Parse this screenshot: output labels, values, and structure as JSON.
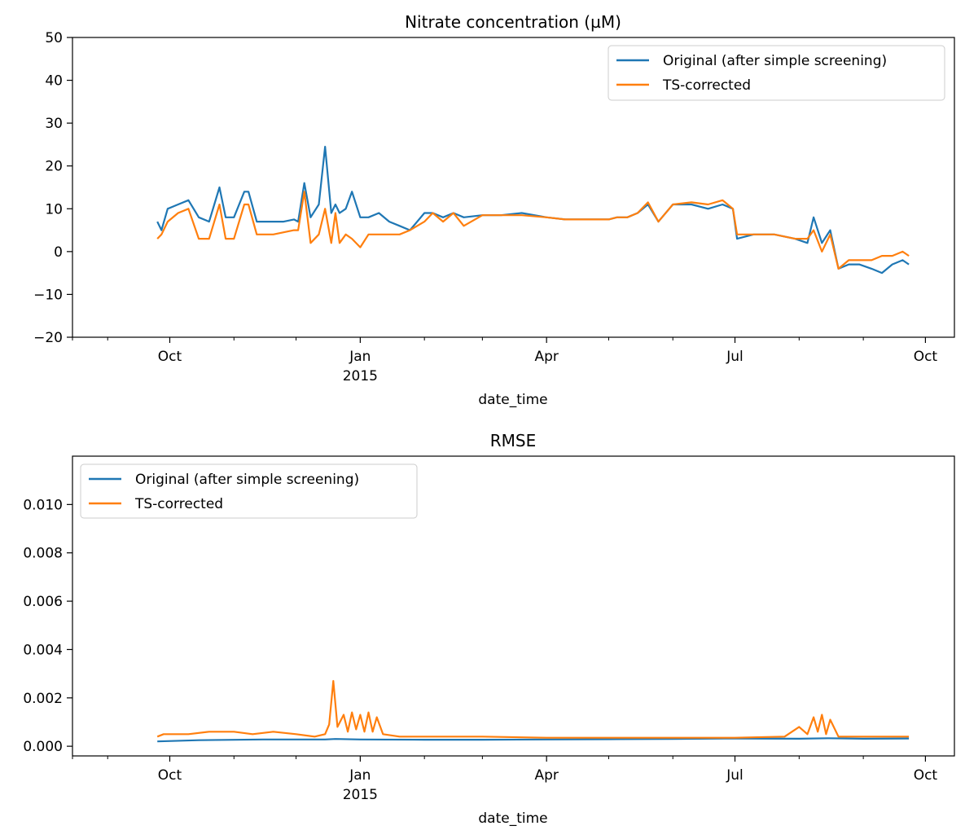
{
  "chart_data": [
    {
      "type": "line",
      "title": "Nitrate concentration (µM)",
      "xlabel": "date_time",
      "ylabel": "",
      "ylim": [
        -20,
        50
      ],
      "xlim": [
        "2014-08-15",
        "2015-10-15"
      ],
      "yticks": [
        -20,
        -10,
        0,
        10,
        20,
        30,
        40,
        50
      ],
      "ytick_labels": [
        "−20",
        "−10",
        "0",
        "10",
        "20",
        "30",
        "40",
        "50"
      ],
      "xticks": [
        {
          "date": "2014-10-01",
          "label": "Oct",
          "sub": ""
        },
        {
          "date": "2015-01-01",
          "label": "Jan",
          "sub": "2015"
        },
        {
          "date": "2015-04-01",
          "label": "Apr",
          "sub": ""
        },
        {
          "date": "2015-07-01",
          "label": "Jul",
          "sub": ""
        },
        {
          "date": "2015-10-01",
          "label": "Oct",
          "sub": ""
        }
      ],
      "minor_ticks": [
        "2014-08-15",
        "2014-09-01",
        "2014-11-01",
        "2014-12-01",
        "2015-02-01",
        "2015-03-01",
        "2015-05-01",
        "2015-06-01",
        "2015-08-01",
        "2015-09-01"
      ],
      "legend_position": "top-right",
      "grid": false,
      "series": [
        {
          "name": "Original (after simple screening)",
          "color": "#1f77b4",
          "x": [
            "2014-09-25",
            "2014-09-27",
            "2014-09-30",
            "2014-10-05",
            "2014-10-10",
            "2014-10-15",
            "2014-10-20",
            "2014-10-25",
            "2014-10-28",
            "2014-11-01",
            "2014-11-06",
            "2014-11-08",
            "2014-11-12",
            "2014-11-15",
            "2014-11-20",
            "2014-11-25",
            "2014-11-30",
            "2014-12-02",
            "2014-12-05",
            "2014-12-08",
            "2014-12-12",
            "2014-12-15",
            "2014-12-18",
            "2014-12-20",
            "2014-12-22",
            "2014-12-25",
            "2014-12-28",
            "2015-01-01",
            "2015-01-05",
            "2015-01-10",
            "2015-01-15",
            "2015-01-20",
            "2015-01-25",
            "2015-02-01",
            "2015-02-05",
            "2015-02-10",
            "2015-02-15",
            "2015-02-20",
            "2015-03-01",
            "2015-03-10",
            "2015-03-20",
            "2015-04-01",
            "2015-04-10",
            "2015-04-20",
            "2015-05-01",
            "2015-05-05",
            "2015-05-10",
            "2015-05-15",
            "2015-05-20",
            "2015-05-25",
            "2015-06-01",
            "2015-06-10",
            "2015-06-18",
            "2015-06-25",
            "2015-06-30",
            "2015-07-02",
            "2015-07-10",
            "2015-07-20",
            "2015-07-30",
            "2015-08-05",
            "2015-08-08",
            "2015-08-12",
            "2015-08-16",
            "2015-08-20",
            "2015-08-25",
            "2015-08-30",
            "2015-09-05",
            "2015-09-10",
            "2015-09-15",
            "2015-09-20",
            "2015-09-23"
          ],
          "y": [
            7,
            5,
            10,
            11,
            12,
            8,
            7,
            15,
            8,
            8,
            14,
            14,
            7,
            7,
            7,
            7,
            7.5,
            7,
            16,
            8,
            11,
            24.5,
            9,
            11,
            9,
            10,
            14,
            8,
            8,
            9,
            7,
            6,
            5,
            9,
            9,
            8,
            9,
            8,
            8.5,
            8.5,
            9,
            8,
            7.5,
            7.5,
            7.5,
            8,
            8,
            9,
            11,
            7,
            11,
            11,
            10,
            11,
            10,
            3,
            4,
            4,
            3,
            2,
            8,
            2,
            5,
            -4,
            -3,
            -3,
            -4,
            -5,
            -3,
            -2,
            -3
          ]
        },
        {
          "name": "TS-corrected",
          "color": "#ff7f0e",
          "x": [
            "2014-09-25",
            "2014-09-27",
            "2014-09-30",
            "2014-10-05",
            "2014-10-10",
            "2014-10-15",
            "2014-10-20",
            "2014-10-25",
            "2014-10-28",
            "2014-11-01",
            "2014-11-06",
            "2014-11-08",
            "2014-11-12",
            "2014-11-15",
            "2014-11-20",
            "2014-11-25",
            "2014-11-30",
            "2014-12-02",
            "2014-12-05",
            "2014-12-08",
            "2014-12-12",
            "2014-12-15",
            "2014-12-18",
            "2014-12-20",
            "2014-12-22",
            "2014-12-25",
            "2014-12-28",
            "2015-01-01",
            "2015-01-05",
            "2015-01-10",
            "2015-01-15",
            "2015-01-20",
            "2015-01-25",
            "2015-02-01",
            "2015-02-05",
            "2015-02-10",
            "2015-02-15",
            "2015-02-20",
            "2015-03-01",
            "2015-03-10",
            "2015-03-20",
            "2015-04-01",
            "2015-04-10",
            "2015-04-20",
            "2015-05-01",
            "2015-05-05",
            "2015-05-10",
            "2015-05-15",
            "2015-05-20",
            "2015-05-25",
            "2015-06-01",
            "2015-06-10",
            "2015-06-18",
            "2015-06-25",
            "2015-06-30",
            "2015-07-02",
            "2015-07-10",
            "2015-07-20",
            "2015-07-30",
            "2015-08-05",
            "2015-08-08",
            "2015-08-12",
            "2015-08-16",
            "2015-08-20",
            "2015-08-25",
            "2015-08-30",
            "2015-09-05",
            "2015-09-10",
            "2015-09-15",
            "2015-09-20",
            "2015-09-23"
          ],
          "y": [
            3,
            4,
            7,
            9,
            10,
            3,
            3,
            11,
            3,
            3,
            11,
            11,
            4,
            4,
            4,
            4.5,
            5,
            5,
            14,
            2,
            4,
            10,
            2,
            9,
            2,
            4,
            3,
            1,
            4,
            4,
            4,
            4,
            5,
            7,
            9,
            7,
            9,
            6,
            8.5,
            8.5,
            8.5,
            8,
            7.5,
            7.5,
            7.5,
            8,
            8,
            9,
            11.5,
            7,
            11,
            11.5,
            11,
            12,
            10,
            4,
            4,
            4,
            3,
            3,
            5,
            0,
            4,
            -4,
            -2,
            -2,
            -2,
            -1,
            -1,
            0,
            -1
          ]
        }
      ]
    },
    {
      "type": "line",
      "title": "RMSE",
      "xlabel": "date_time",
      "ylabel": "",
      "ylim": [
        -0.0004,
        0.012
      ],
      "xlim": [
        "2014-08-15",
        "2015-10-15"
      ],
      "yticks": [
        0,
        0.002,
        0.004,
        0.006,
        0.008,
        0.01
      ],
      "ytick_labels": [
        "0.000",
        "0.002",
        "0.004",
        "0.006",
        "0.008",
        "0.010"
      ],
      "xticks": [
        {
          "date": "2014-10-01",
          "label": "Oct",
          "sub": ""
        },
        {
          "date": "2015-01-01",
          "label": "Jan",
          "sub": "2015"
        },
        {
          "date": "2015-04-01",
          "label": "Apr",
          "sub": ""
        },
        {
          "date": "2015-07-01",
          "label": "Jul",
          "sub": ""
        },
        {
          "date": "2015-10-01",
          "label": "Oct",
          "sub": ""
        }
      ],
      "minor_ticks": [
        "2014-08-15",
        "2014-09-01",
        "2014-11-01",
        "2014-12-01",
        "2015-02-01",
        "2015-03-01",
        "2015-05-01",
        "2015-06-01",
        "2015-08-01",
        "2015-09-01"
      ],
      "legend_position": "top-left",
      "grid": false,
      "series": [
        {
          "name": "Original (after simple screening)",
          "color": "#1f77b4",
          "x": [
            "2014-09-25",
            "2014-10-15",
            "2014-11-15",
            "2014-12-15",
            "2014-12-20",
            "2015-01-01",
            "2015-02-01",
            "2015-03-01",
            "2015-04-01",
            "2015-05-01",
            "2015-06-01",
            "2015-07-01",
            "2015-08-01",
            "2015-08-15",
            "2015-09-01",
            "2015-09-23"
          ],
          "y": [
            0.0002,
            0.00025,
            0.00028,
            0.00028,
            0.0003,
            0.00028,
            0.00027,
            0.00027,
            0.00028,
            0.00029,
            0.0003,
            0.00032,
            0.00031,
            0.00033,
            0.00031,
            0.00032
          ]
        },
        {
          "name": "TS-corrected",
          "color": "#ff7f0e",
          "x": [
            "2014-09-25",
            "2014-09-28",
            "2014-10-10",
            "2014-10-20",
            "2014-11-01",
            "2014-11-10",
            "2014-11-20",
            "2014-12-01",
            "2014-12-10",
            "2014-12-15",
            "2014-12-17",
            "2014-12-19",
            "2014-12-21",
            "2014-12-24",
            "2014-12-26",
            "2014-12-28",
            "2014-12-30",
            "2015-01-01",
            "2015-01-03",
            "2015-01-05",
            "2015-01-07",
            "2015-01-09",
            "2015-01-12",
            "2015-01-20",
            "2015-02-01",
            "2015-03-01",
            "2015-04-01",
            "2015-05-01",
            "2015-06-01",
            "2015-07-01",
            "2015-07-25",
            "2015-08-01",
            "2015-08-05",
            "2015-08-08",
            "2015-08-10",
            "2015-08-12",
            "2015-08-14",
            "2015-08-16",
            "2015-08-20",
            "2015-09-01",
            "2015-09-23"
          ],
          "y": [
            0.0004,
            0.0005,
            0.0005,
            0.0006,
            0.0006,
            0.0005,
            0.0006,
            0.0005,
            0.0004,
            0.0005,
            0.0009,
            0.0027,
            0.0008,
            0.0013,
            0.0006,
            0.0014,
            0.0007,
            0.0013,
            0.0006,
            0.0014,
            0.0006,
            0.0012,
            0.0005,
            0.0004,
            0.0004,
            0.0004,
            0.00035,
            0.00035,
            0.00035,
            0.00035,
            0.0004,
            0.0008,
            0.0005,
            0.0012,
            0.0006,
            0.0013,
            0.0005,
            0.0011,
            0.0004,
            0.0004,
            0.0004
          ]
        }
      ]
    }
  ]
}
